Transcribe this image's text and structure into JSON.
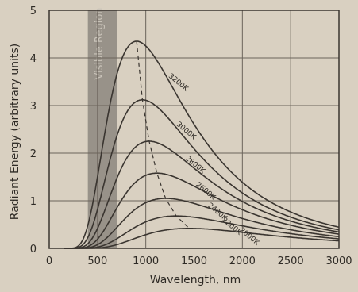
{
  "chart_data": {
    "type": "line",
    "title": "",
    "xlabel": "Wavelength, nm",
    "ylabel": "Radiant Energy (arbitrary units)",
    "xlim": [
      0,
      3000
    ],
    "ylim": [
      0,
      5
    ],
    "x_ticks": [
      0,
      500,
      1000,
      1500,
      2000,
      2500,
      3000
    ],
    "y_ticks": [
      0,
      1,
      2,
      3,
      4,
      5
    ],
    "grid": true,
    "visible_region": {
      "label": "Visible Region",
      "x_range": [
        400,
        700
      ]
    },
    "peak_line": "dashed",
    "series": [
      {
        "name": "3200K",
        "peak_x": 905,
        "peak_y": 4.35
      },
      {
        "name": "3000K",
        "peak_x": 965,
        "peak_y": 3.12
      },
      {
        "name": "2800K",
        "peak_x": 1035,
        "peak_y": 2.25
      },
      {
        "name": "2600K",
        "peak_x": 1115,
        "peak_y": 1.58
      },
      {
        "name": "2400K",
        "peak_x": 1205,
        "peak_y": 1.05
      },
      {
        "name": "2200K",
        "peak_x": 1315,
        "peak_y": 0.68
      },
      {
        "name": "2000K",
        "peak_x": 1450,
        "peak_y": 0.42
      }
    ],
    "colors": {
      "background": "#d9d0c1",
      "line": "#3a3530",
      "grid": "#6b645b",
      "visible_band": "#8c877f"
    }
  }
}
